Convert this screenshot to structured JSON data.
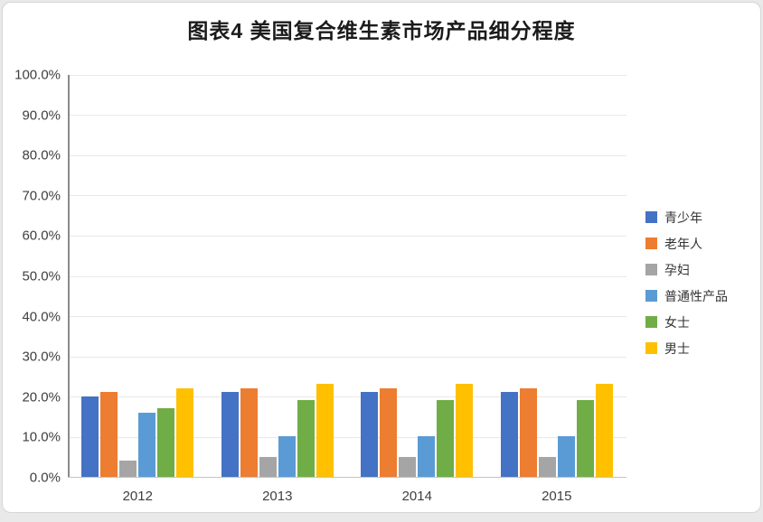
{
  "page": {
    "title": "图表4  美国复合维生素市场产品细分程度"
  },
  "chart_data": {
    "type": "bar",
    "title": "图表4  美国复合维生素市场产品细分程度",
    "categories": [
      "2012",
      "2013",
      "2014",
      "2015"
    ],
    "series": [
      {
        "name": "青少年",
        "color": "#4472C4",
        "values": [
          20,
          21,
          21,
          21
        ]
      },
      {
        "name": "老年人",
        "color": "#ED7D31",
        "values": [
          21,
          22,
          22,
          22
        ]
      },
      {
        "name": "孕妇",
        "color": "#A5A5A5",
        "values": [
          4,
          5,
          5,
          5
        ]
      },
      {
        "name": "普通性产品",
        "color": "#5B9BD5",
        "values": [
          16,
          10,
          10,
          10
        ]
      },
      {
        "name": "女士",
        "color": "#70AD47",
        "values": [
          17,
          19,
          19,
          19
        ]
      },
      {
        "name": "男士",
        "color": "#FFC000",
        "values": [
          22,
          23,
          23,
          23
        ]
      }
    ],
    "unit": "%",
    "xlabel": "",
    "ylabel": "",
    "ylim": [
      0,
      100
    ],
    "y_tick_step": 10,
    "y_ticks": [
      "0.0%",
      "10.0%",
      "20.0%",
      "30.0%",
      "40.0%",
      "50.0%",
      "60.0%",
      "70.0%",
      "80.0%",
      "90.0%",
      "100.0%"
    ],
    "grid": true,
    "legend_position": "right"
  }
}
